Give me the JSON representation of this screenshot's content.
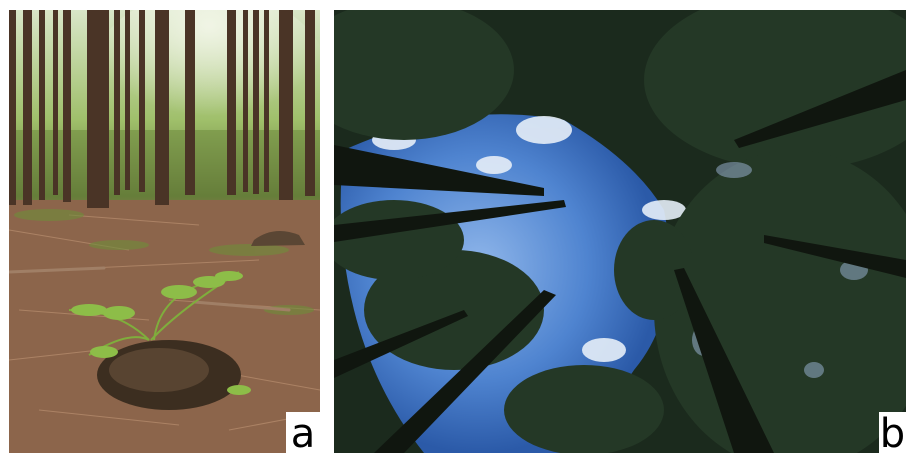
{
  "panels": [
    {
      "label": "a",
      "subject": "pine-forest-floor-with-fern"
    },
    {
      "label": "b",
      "subject": "upward-view-of-tree-canopy-and-sky"
    }
  ],
  "colors": {
    "forest_floor": "#8a6248",
    "tree_trunk": "#4a3426",
    "fern": "#7fae3c",
    "sky": "#5e8fd6",
    "canopy": "#1b2a1d"
  }
}
